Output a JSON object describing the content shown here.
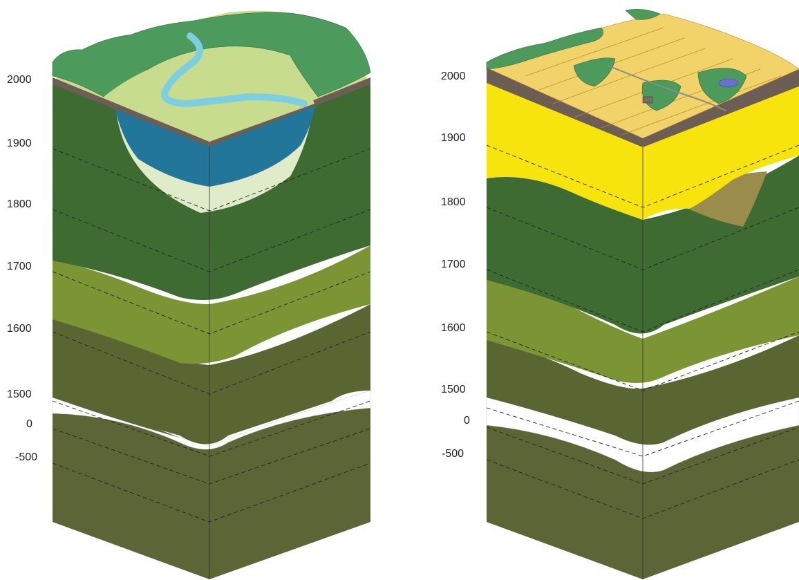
{
  "blocks": [
    {
      "name": "river-floodplain-block",
      "scale_labels": [
        "2000",
        "1900",
        "1800",
        "1700",
        "1600",
        "1500",
        "0",
        "-500"
      ]
    },
    {
      "name": "farmland-block",
      "scale_labels": [
        "2000",
        "1900",
        "1800",
        "1700",
        "1600",
        "1500",
        "0",
        "-500"
      ]
    }
  ],
  "colors": {
    "dark_green": "#3e6b32",
    "olive_green": "#7b9434",
    "dark_olive": "#5a6631",
    "deep_olive": "#5b6535",
    "water_blue": "#21769a",
    "pale_green": "#e0ebc9",
    "white_band": "#ffffff",
    "yellow": "#f8e40d",
    "tan": "#9a8c4a",
    "brown_edge": "#6d5e55",
    "forest": "#4c9a5c",
    "field_yellow": "#f1d36a",
    "meadow": "#c8dc8e",
    "river": "#7ccfe0"
  },
  "icons": [
    "forest-canopy-icon",
    "river-icon",
    "farm-field-icon",
    "pond-icon",
    "farmhouse-icon"
  ]
}
